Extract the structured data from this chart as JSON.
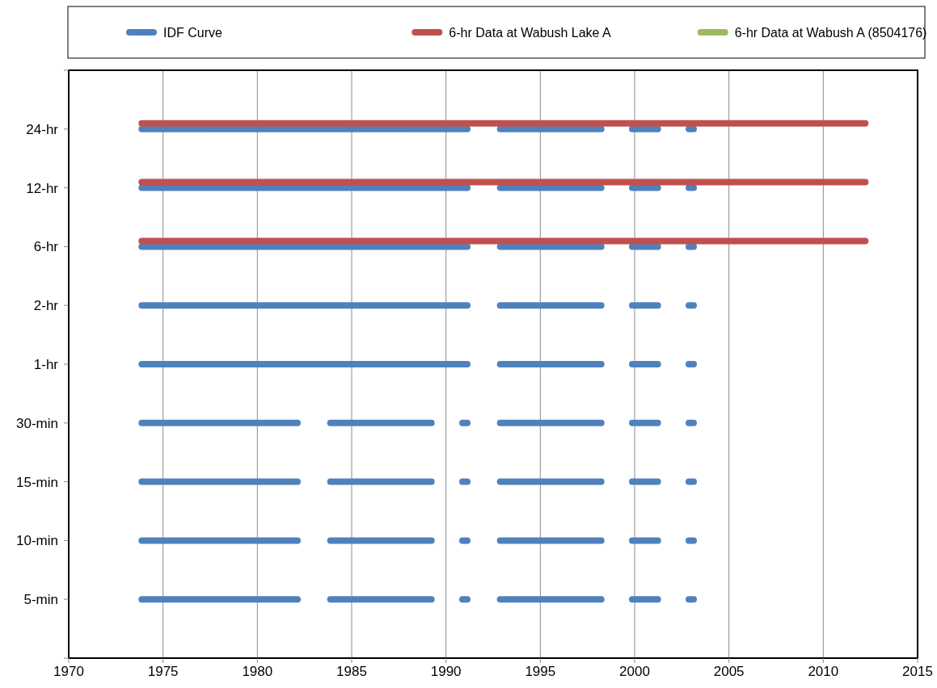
{
  "chart_data": {
    "type": "bar",
    "orientation": "horizontal",
    "xlim": [
      1970,
      2015
    ],
    "xticks": [
      1970,
      1975,
      1980,
      1985,
      1990,
      1995,
      2000,
      2005,
      2010,
      2015
    ],
    "categories": [
      null,
      "24-hr",
      "12-hr",
      "6-hr",
      "2-hr",
      "1-hr",
      "30-min",
      "15-min",
      "10-min",
      "5-min",
      null
    ],
    "grid": "x",
    "legend": "top",
    "series": [
      {
        "name": "IDF Curve",
        "color": "#4f81bd",
        "base": [
          null,
          1973.7,
          1973.7,
          1973.7,
          1973.7,
          1973.7,
          1973.7,
          1973.7,
          1973.7,
          1973.7,
          null
        ],
        "values": [
          null,
          17.6,
          17.6,
          17.6,
          17.6,
          17.6,
          8.6,
          8.6,
          8.6,
          8.6,
          null
        ]
      },
      {
        "color": "#4f81bd",
        "base": [
          null,
          1992.7,
          1992.7,
          1992.7,
          1992.7,
          1992.7,
          1983.7,
          1983.7,
          1983.7,
          1983.7,
          null
        ],
        "values": [
          null,
          5.7,
          5.7,
          5.7,
          5.7,
          5.7,
          5.7,
          5.7,
          5.7,
          5.7,
          null
        ]
      },
      {
        "color": "#4f81bd",
        "base": [
          null,
          1999.7,
          1999.7,
          1999.7,
          1999.7,
          1999.7,
          1990.7,
          1990.7,
          1990.7,
          1990.7,
          null
        ],
        "values": [
          null,
          1.7,
          1.7,
          1.7,
          1.7,
          1.7,
          0.6,
          0.6,
          0.6,
          0.6,
          null
        ]
      },
      {
        "color": "#4f81bd",
        "base": [
          null,
          2002.7,
          2002.7,
          2002.7,
          2002.7,
          2002.7,
          1992.7,
          1992.7,
          1992.7,
          1992.7,
          null
        ],
        "values": [
          null,
          0.6,
          0.6,
          0.6,
          0.6,
          0.6,
          5.7,
          5.7,
          5.7,
          5.7,
          null
        ]
      },
      {
        "color": "#4f81bd",
        "base": [
          null,
          null,
          null,
          null,
          null,
          null,
          1999.7,
          1999.7,
          1999.7,
          1999.7,
          null
        ],
        "values": [
          null,
          null,
          null,
          null,
          null,
          null,
          1.7,
          1.7,
          1.7,
          1.7,
          null
        ]
      },
      {
        "color": "#4f81bd",
        "base": [
          null,
          null,
          null,
          null,
          null,
          null,
          2002.7,
          2002.7,
          2002.7,
          2002.7,
          null
        ],
        "values": [
          null,
          null,
          null,
          null,
          null,
          null,
          0.6,
          0.6,
          0.6,
          0.6,
          null
        ]
      },
      {
        "name": "6-hr Data at Wabush Lake A",
        "color": "#c0504d",
        "base": [
          null,
          1973.7,
          1973.7,
          1973.7,
          null,
          null,
          null,
          null,
          null,
          null,
          null
        ],
        "values": [
          null,
          38.7,
          38.7,
          38.7,
          null,
          null,
          null,
          null,
          null,
          null,
          null
        ]
      },
      {
        "name": "6-hr Data at Wabush A (8504176)",
        "color": "#9bbb59",
        "base": [
          null,
          null,
          null,
          null,
          null,
          null,
          null,
          null,
          null,
          null,
          null
        ],
        "values": [
          null,
          null,
          null,
          null,
          null,
          null,
          null,
          null,
          null,
          null,
          null
        ]
      }
    ]
  }
}
